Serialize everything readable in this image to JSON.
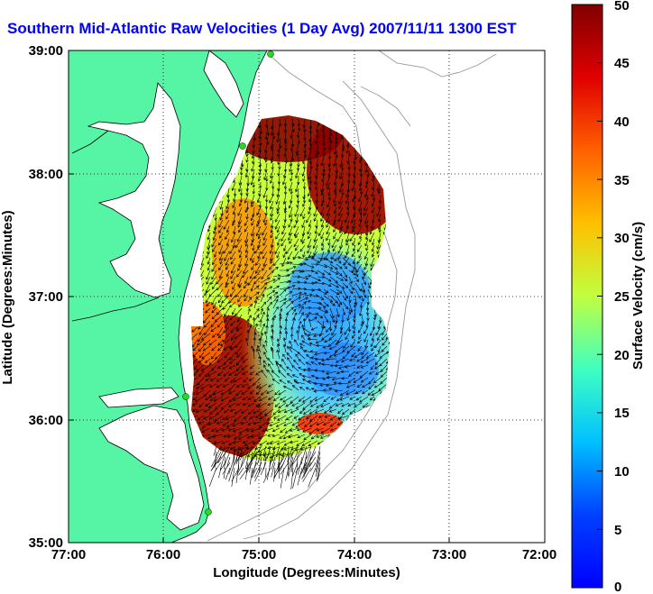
{
  "title": "Southern Mid-Atlantic Raw Velocities (1 Day Avg) 2007/11/11 1300 EST",
  "map": {
    "xlabel": "Longitude (Degrees:Minutes)",
    "ylabel": "Latitude (Degrees:Minutes)",
    "x_ticks": [
      "77:00",
      "76:00",
      "75:00",
      "74:00",
      "73:00",
      "72:00"
    ],
    "y_ticks": [
      "39:00",
      "38:00",
      "37:00",
      "36:00",
      "35:00"
    ],
    "lon_range": [
      -77,
      -72
    ],
    "lat_range": [
      35,
      39
    ],
    "land_color": "#55f5a5",
    "station_color": "#22dd22",
    "grid": true
  },
  "colorbar": {
    "label": "Surface Velocity (cm/s)",
    "ticks": [
      "50",
      "45",
      "40",
      "35",
      "30",
      "25",
      "20",
      "15",
      "10",
      "5",
      "0"
    ],
    "range": [
      0,
      50
    ],
    "colormap": "jet"
  }
}
